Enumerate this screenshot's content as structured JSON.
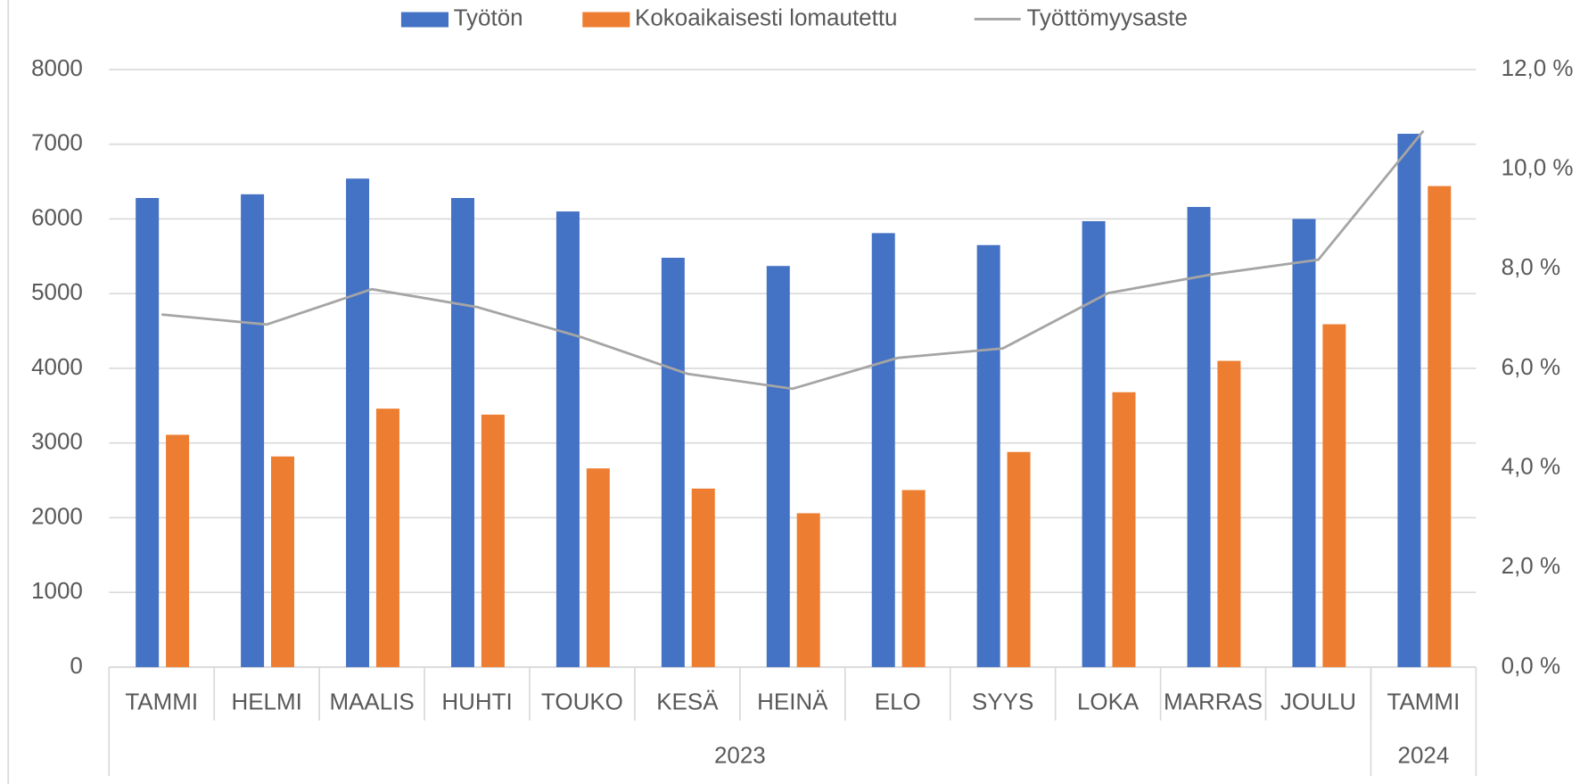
{
  "chart_data": {
    "type": "bar",
    "categories": [
      "TAMMI",
      "HELMI",
      "MAALIS",
      "HUHTI",
      "TOUKO",
      "KESÄ",
      "HEINÄ",
      "ELO",
      "SYYS",
      "LOKA",
      "MARRAS",
      "JOULU",
      "TAMMI"
    ],
    "groups": [
      {
        "label": "2023",
        "span": 12
      },
      {
        "label": "2024",
        "span": 1
      }
    ],
    "series": [
      {
        "name": "Työtön",
        "type": "bar",
        "color": "#4472c4",
        "values": [
          6280,
          6330,
          6540,
          6280,
          6100,
          5480,
          5370,
          5810,
          5650,
          5970,
          6160,
          6000,
          7140
        ]
      },
      {
        "name": "Kokoaikaisesti lomautettu",
        "type": "bar",
        "color": "#ed7d31",
        "values": [
          3110,
          2820,
          3460,
          3380,
          2660,
          2390,
          2060,
          2370,
          2880,
          3680,
          4100,
          4590,
          6440
        ]
      },
      {
        "name": "Työttömyysaste",
        "type": "line",
        "axis": "y2",
        "color": "#a5a5a5",
        "values": [
          7.08,
          6.88,
          7.59,
          7.23,
          6.62,
          5.89,
          5.59,
          6.21,
          6.4,
          7.51,
          7.89,
          8.18,
          10.77
        ]
      }
    ],
    "ylim": [
      0,
      8000
    ],
    "yticks": [
      0,
      1000,
      2000,
      3000,
      4000,
      5000,
      6000,
      7000,
      8000
    ],
    "y2lim": [
      0,
      12
    ],
    "y2ticks": [
      {
        "value": 0,
        "label": "0,0 %"
      },
      {
        "value": 2,
        "label": "2,0 %"
      },
      {
        "value": 4,
        "label": "4,0 %"
      },
      {
        "value": 6,
        "label": "6,0 %"
      },
      {
        "value": 8,
        "label": "8,0 %"
      },
      {
        "value": 10,
        "label": "10,0 %"
      },
      {
        "value": 12,
        "label": "12,0 %"
      }
    ],
    "grid": true,
    "legend": "top"
  }
}
